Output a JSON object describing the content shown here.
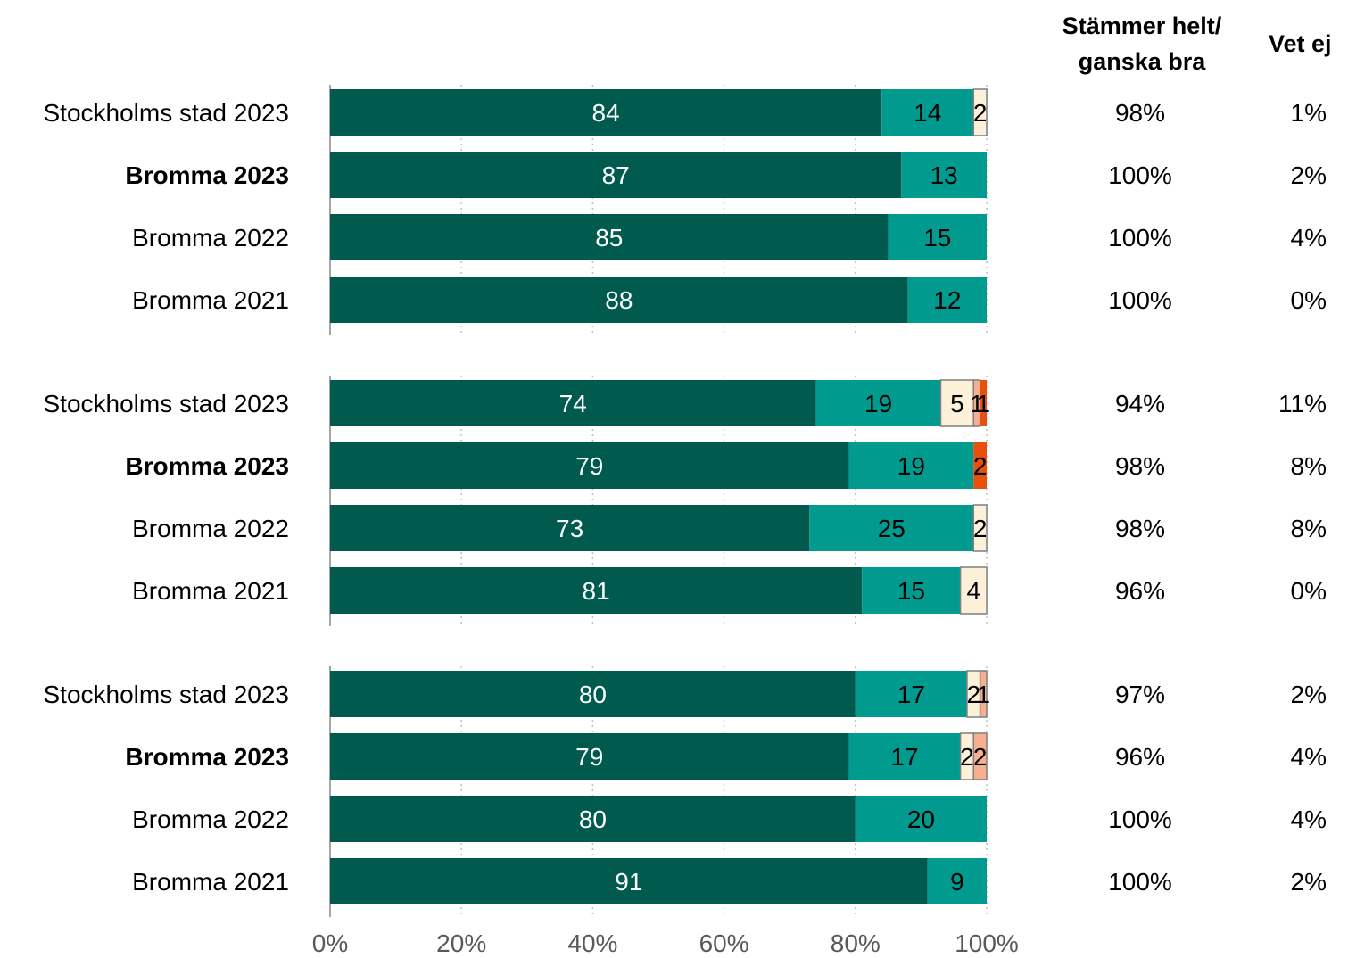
{
  "columns": {
    "agree_header_line1": "Stämmer helt/",
    "agree_header_line2": "ganska bra",
    "dontknow_header": "Vet ej"
  },
  "colors": {
    "stammer_helt": "#005a4e",
    "stammer_ganska_bra": "#009a8f",
    "stammer_ganska_daligt": "#fdf0d9",
    "stammer_ganska_daligt_alt": "#f6b08f",
    "stammer_inte_alls": "#e8500e",
    "grid": "#bfbfbf"
  },
  "chart_data": {
    "type": "bar",
    "orientation": "horizontal",
    "stacked": true,
    "xlim": [
      0,
      100
    ],
    "x_ticks": [
      "0%",
      "20%",
      "40%",
      "60%",
      "80%",
      "100%"
    ],
    "grid": true,
    "groups": [
      {
        "rows": [
          {
            "label": "Stockholms stad 2023",
            "bold": false,
            "segments": [
              {
                "value": 84,
                "color": "stammer_helt",
                "label": "84"
              },
              {
                "value": 14,
                "color": "stammer_ganska_bra",
                "label": "14"
              },
              {
                "value": 2,
                "color": "stammer_ganska_daligt",
                "label": "2"
              }
            ],
            "agree": "98%",
            "dont_know": "1%"
          },
          {
            "label": "Bromma 2023",
            "bold": true,
            "segments": [
              {
                "value": 87,
                "color": "stammer_helt",
                "label": "87"
              },
              {
                "value": 13,
                "color": "stammer_ganska_bra",
                "label": "13"
              }
            ],
            "agree": "100%",
            "dont_know": "2%"
          },
          {
            "label": "Bromma 2022",
            "bold": false,
            "segments": [
              {
                "value": 85,
                "color": "stammer_helt",
                "label": "85"
              },
              {
                "value": 15,
                "color": "stammer_ganska_bra",
                "label": "15"
              }
            ],
            "agree": "100%",
            "dont_know": "4%"
          },
          {
            "label": "Bromma 2021",
            "bold": false,
            "segments": [
              {
                "value": 88,
                "color": "stammer_helt",
                "label": "88"
              },
              {
                "value": 12,
                "color": "stammer_ganska_bra",
                "label": "12"
              }
            ],
            "agree": "100%",
            "dont_know": "0%"
          }
        ]
      },
      {
        "rows": [
          {
            "label": "Stockholms stad 2023",
            "bold": false,
            "segments": [
              {
                "value": 74,
                "color": "stammer_helt",
                "label": "74"
              },
              {
                "value": 19,
                "color": "stammer_ganska_bra",
                "label": "19"
              },
              {
                "value": 5,
                "color": "stammer_ganska_daligt",
                "label": "5"
              },
              {
                "value": 1,
                "color": "stammer_ganska_daligt_alt",
                "label": "1"
              },
              {
                "value": 1,
                "color": "stammer_inte_alls",
                "label": "1"
              }
            ],
            "agree": "94%",
            "dont_know": "11%"
          },
          {
            "label": "Bromma 2023",
            "bold": true,
            "segments": [
              {
                "value": 79,
                "color": "stammer_helt",
                "label": "79"
              },
              {
                "value": 19,
                "color": "stammer_ganska_bra",
                "label": "19"
              },
              {
                "value": 2,
                "color": "stammer_inte_alls",
                "label": "2"
              }
            ],
            "agree": "98%",
            "dont_know": "8%"
          },
          {
            "label": "Bromma 2022",
            "bold": false,
            "segments": [
              {
                "value": 73,
                "color": "stammer_helt",
                "label": "73"
              },
              {
                "value": 25,
                "color": "stammer_ganska_bra",
                "label": "25"
              },
              {
                "value": 2,
                "color": "stammer_ganska_daligt",
                "label": "2"
              }
            ],
            "agree": "98%",
            "dont_know": "8%"
          },
          {
            "label": "Bromma 2021",
            "bold": false,
            "segments": [
              {
                "value": 81,
                "color": "stammer_helt",
                "label": "81"
              },
              {
                "value": 15,
                "color": "stammer_ganska_bra",
                "label": "15"
              },
              {
                "value": 4,
                "color": "stammer_ganska_daligt",
                "label": "4"
              }
            ],
            "agree": "96%",
            "dont_know": "0%"
          }
        ]
      },
      {
        "rows": [
          {
            "label": "Stockholms stad 2023",
            "bold": false,
            "segments": [
              {
                "value": 80,
                "color": "stammer_helt",
                "label": "80"
              },
              {
                "value": 17,
                "color": "stammer_ganska_bra",
                "label": "17"
              },
              {
                "value": 2,
                "color": "stammer_ganska_daligt",
                "label": "2"
              },
              {
                "value": 1,
                "color": "stammer_ganska_daligt_alt",
                "label": "1"
              }
            ],
            "agree": "97%",
            "dont_know": "2%"
          },
          {
            "label": "Bromma 2023",
            "bold": true,
            "segments": [
              {
                "value": 79,
                "color": "stammer_helt",
                "label": "79"
              },
              {
                "value": 17,
                "color": "stammer_ganska_bra",
                "label": "17"
              },
              {
                "value": 2,
                "color": "stammer_ganska_daligt",
                "label": "2"
              },
              {
                "value": 2,
                "color": "stammer_ganska_daligt_alt",
                "label": "2"
              }
            ],
            "agree": "96%",
            "dont_know": "4%"
          },
          {
            "label": "Bromma 2022",
            "bold": false,
            "segments": [
              {
                "value": 80,
                "color": "stammer_helt",
                "label": "80"
              },
              {
                "value": 20,
                "color": "stammer_ganska_bra",
                "label": "20"
              }
            ],
            "agree": "100%",
            "dont_know": "4%"
          },
          {
            "label": "Bromma 2021",
            "bold": false,
            "segments": [
              {
                "value": 91,
                "color": "stammer_helt",
                "label": "91"
              },
              {
                "value": 9,
                "color": "stammer_ganska_bra",
                "label": "9"
              }
            ],
            "agree": "100%",
            "dont_know": "2%"
          }
        ]
      }
    ]
  }
}
